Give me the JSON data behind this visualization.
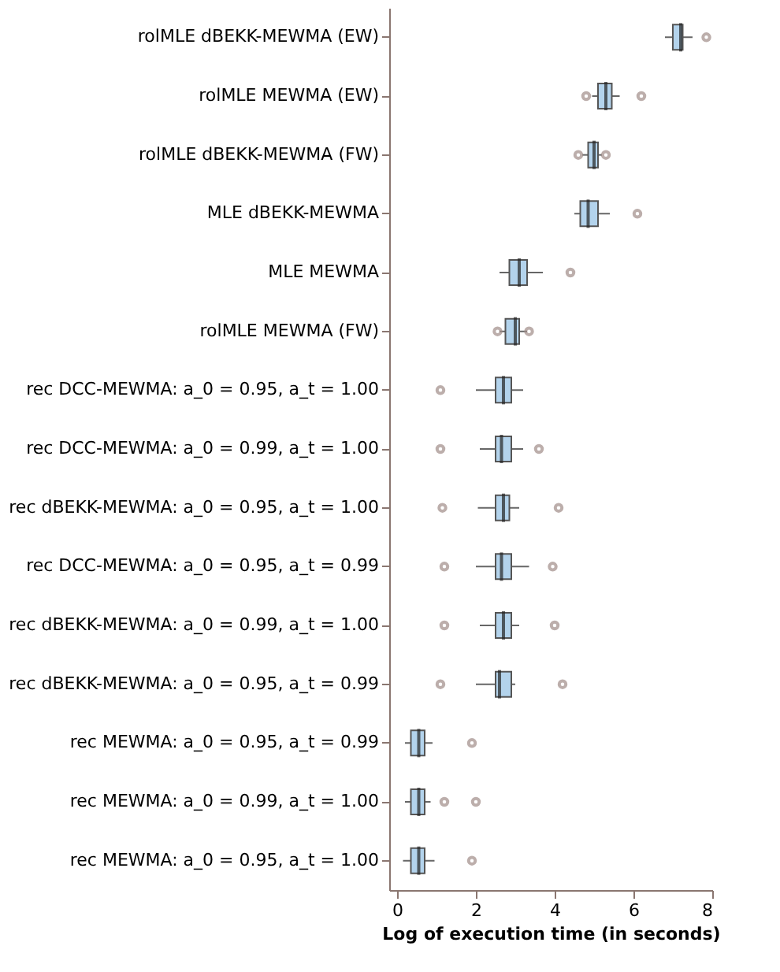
{
  "chart_data": {
    "type": "box",
    "orientation": "horizontal",
    "xlabel": "Log of execution time (in seconds)",
    "categories": [
      "rolMLE dBEKK-MEWMA (EW)",
      "rolMLE MEWMA (EW)",
      "rolMLE dBEKK-MEWMA (FW)",
      "MLE dBEKK-MEWMA",
      "MLE MEWMA",
      "rolMLE MEWMA (FW)",
      "rec DCC-MEWMA: a_0 = 0.95, a_t = 1.00",
      "rec DCC-MEWMA: a_0 = 0.99, a_t = 1.00",
      "rec dBEKK-MEWMA: a_0 = 0.95, a_t = 1.00",
      "rec DCC-MEWMA: a_0 = 0.95, a_t = 0.99",
      "rec dBEKK-MEWMA: a_0 = 0.99, a_t = 1.00",
      "rec dBEKK-MEWMA: a_0 = 0.95, a_t = 0.99",
      "rec MEWMA: a_0 = 0.95, a_t = 0.99",
      "rec MEWMA: a_0 = 0.99, a_t = 1.00",
      "rec MEWMA: a_0 = 0.95, a_t = 1.00"
    ],
    "series": [
      {
        "color": "#b3d3ec",
        "boxes": [
          {
            "low": 6.8,
            "q1": 7.0,
            "median": 7.2,
            "q3": 7.25,
            "high": 7.5,
            "outliers": [
              7.85
            ]
          },
          {
            "low": 4.95,
            "q1": 5.1,
            "median": 5.3,
            "q3": 5.45,
            "high": 5.65,
            "outliers": [
              4.8,
              6.2
            ]
          },
          {
            "low": 4.7,
            "q1": 4.85,
            "median": 5.0,
            "q3": 5.1,
            "high": 5.2,
            "outliers": [
              4.6,
              5.3
            ]
          },
          {
            "low": 4.5,
            "q1": 4.65,
            "median": 4.85,
            "q3": 5.1,
            "high": 5.4,
            "outliers": [
              6.1
            ]
          },
          {
            "low": 2.6,
            "q1": 2.85,
            "median": 3.1,
            "q3": 3.3,
            "high": 3.7,
            "outliers": [
              4.4
            ]
          },
          {
            "low": 2.6,
            "q1": 2.75,
            "median": 3.0,
            "q3": 3.1,
            "high": 3.3,
            "outliers": [
              2.55,
              3.35
            ]
          },
          {
            "low": 2.0,
            "q1": 2.5,
            "median": 2.7,
            "q3": 2.9,
            "high": 3.2,
            "outliers": [
              1.1
            ]
          },
          {
            "low": 2.1,
            "q1": 2.5,
            "median": 2.65,
            "q3": 2.9,
            "high": 3.2,
            "outliers": [
              1.1,
              3.6
            ]
          },
          {
            "low": 2.05,
            "q1": 2.5,
            "median": 2.7,
            "q3": 2.85,
            "high": 3.1,
            "outliers": [
              1.15,
              4.1
            ]
          },
          {
            "low": 2.0,
            "q1": 2.5,
            "median": 2.65,
            "q3": 2.9,
            "high": 3.35,
            "outliers": [
              1.2,
              3.95
            ]
          },
          {
            "low": 2.1,
            "q1": 2.5,
            "median": 2.7,
            "q3": 2.9,
            "high": 3.1,
            "outliers": [
              1.2,
              4.0
            ]
          },
          {
            "low": 2.0,
            "q1": 2.5,
            "median": 2.6,
            "q3": 2.9,
            "high": 3.0,
            "outliers": [
              1.1,
              4.2
            ]
          },
          {
            "low": 0.2,
            "q1": 0.35,
            "median": 0.55,
            "q3": 0.7,
            "high": 0.9,
            "outliers": [
              1.9
            ]
          },
          {
            "low": 0.2,
            "q1": 0.35,
            "median": 0.55,
            "q3": 0.7,
            "high": 0.85,
            "outliers": [
              1.2,
              2.0
            ]
          },
          {
            "low": 0.15,
            "q1": 0.35,
            "median": 0.55,
            "q3": 0.7,
            "high": 0.95,
            "outliers": [
              1.9
            ]
          }
        ]
      }
    ],
    "xlim": [
      -0.2,
      8
    ],
    "xticks": [
      0,
      2,
      4,
      6,
      8
    ],
    "grid": false
  }
}
